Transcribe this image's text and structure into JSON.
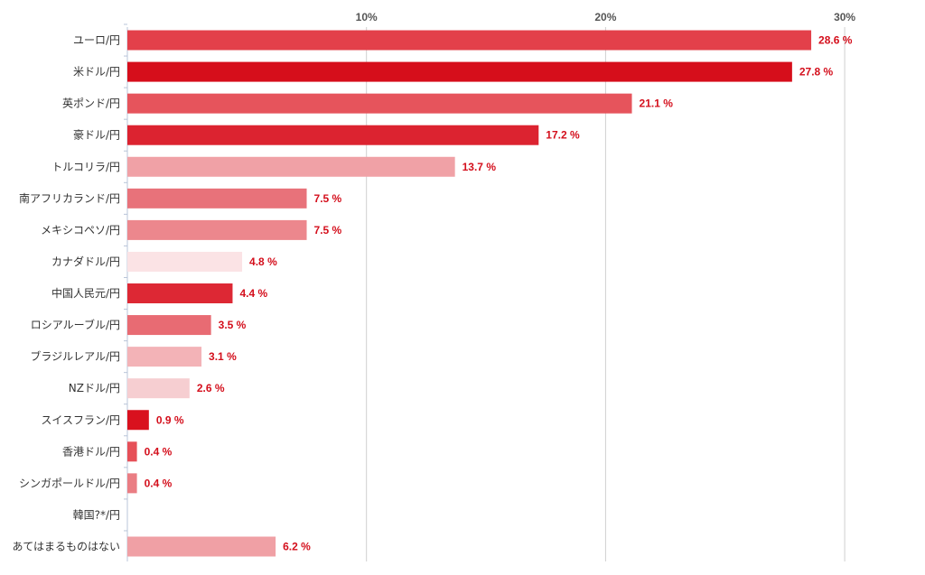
{
  "chart_data": {
    "type": "bar",
    "orientation": "horizontal",
    "categories": [
      "ユーロ/円",
      "米ドル/円",
      "英ポンド/円",
      "豪ドル/円",
      "トルコリラ/円",
      "南アフリカランド/円",
      "メキシコペソ/円",
      "カナダドル/円",
      "中国人民元/円",
      "ロシアルーブル/円",
      "ブラジルレアル/円",
      "NZドル/円",
      "スイスフラン/円",
      "香港ドル/円",
      "シンガポールドル/円",
      "韓国?*/円",
      "あてはまるものはない"
    ],
    "values": [
      28.6,
      27.8,
      21.1,
      17.2,
      13.7,
      7.5,
      7.5,
      4.8,
      4.4,
      3.5,
      3.1,
      2.6,
      0.9,
      0.4,
      0.4,
      null,
      6.2
    ],
    "value_labels": [
      "28.6 %",
      "27.8 %",
      "21.1 %",
      "17.2 %",
      "13.7 %",
      "7.5 %",
      "7.5 %",
      "4.8 %",
      "4.4 %",
      "3.5 %",
      "3.1 %",
      "2.6 %",
      "0.9 %",
      "0.4 %",
      "0.4 %",
      "",
      "6.2 %"
    ],
    "bar_colors": [
      "#e3404a",
      "#d60e1b",
      "#e6545c",
      "#dc2330",
      "#f0a1a6",
      "#e8727a",
      "#ec878d",
      "#fbe3e5",
      "#dd2834",
      "#e86b73",
      "#f3b3b7",
      "#f6ced1",
      "#d9111e",
      "#e65058",
      "#ea7d83",
      "#ffffff",
      "#f0a0a5"
    ],
    "x_ticks": [
      10,
      20,
      30
    ],
    "x_tick_labels": [
      "10%",
      "20%",
      "30%"
    ],
    "xlim": [
      0,
      30.5
    ],
    "grid": true,
    "axis_position": "top",
    "label_color": "#d40f1c",
    "title": "",
    "xlabel": "",
    "ylabel": ""
  }
}
